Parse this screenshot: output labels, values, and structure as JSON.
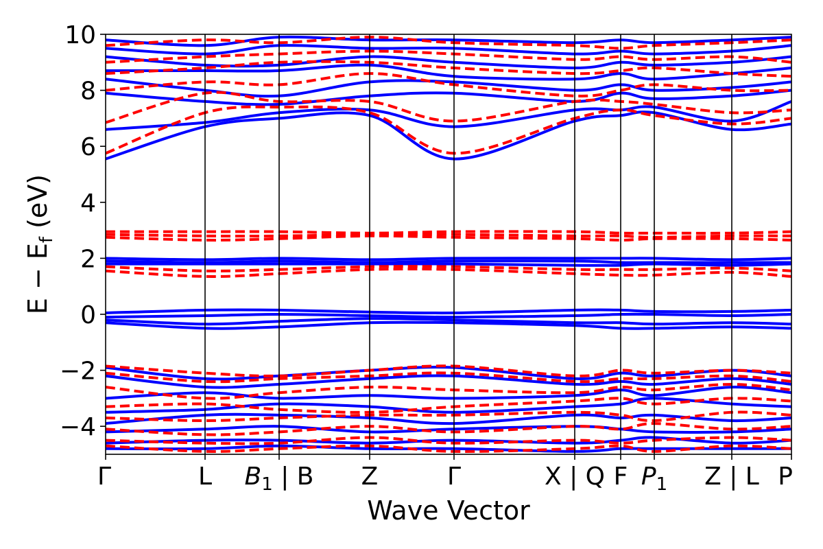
{
  "chart_data": {
    "type": "line",
    "title": "",
    "xlabel": "Wave Vector",
    "ylabel": {
      "main": "E − E",
      "sub": "f",
      "unit": " (eV)"
    },
    "ylim": [
      -5,
      10
    ],
    "yticks": [
      -4,
      -2,
      0,
      2,
      4,
      6,
      8,
      10
    ],
    "ytick_labels": [
      "−4",
      "−2",
      "0",
      "2",
      "4",
      "6",
      "8",
      "10"
    ],
    "kpoints": [
      {
        "x": 0.0,
        "label": "Γ"
      },
      {
        "x": 0.145,
        "label": "L"
      },
      {
        "x": 0.253,
        "label": "B1 | B",
        "main": "B",
        "sub": "1",
        "tail": " | B"
      },
      {
        "x": 0.385,
        "label": "Z"
      },
      {
        "x": 0.508,
        "label": "Γ"
      },
      {
        "x": 0.684,
        "label": "X | Q"
      },
      {
        "x": 0.751,
        "label": "F"
      },
      {
        "x": 0.8,
        "label": "P1",
        "main": "P",
        "sub": "1"
      },
      {
        "x": 0.913,
        "label": "Z | L"
      },
      {
        "x": 1.0,
        "label": "P"
      }
    ],
    "colors": {
      "solid_series": "#0000ff",
      "dashed_series": "#ff0000"
    },
    "series": [
      {
        "style": "solid",
        "x": [
          0,
          0.145,
          0.253,
          0.385,
          0.508,
          0.684,
          0.751,
          0.8,
          0.913,
          1.0
        ],
        "y": [
          5.55,
          6.7,
          7.0,
          7.1,
          5.55,
          6.9,
          7.1,
          7.2,
          6.6,
          6.8
        ]
      },
      {
        "style": "solid",
        "x": [
          0,
          0.145,
          0.253,
          0.385,
          0.508,
          0.684,
          0.751,
          0.8,
          0.913,
          1.0
        ],
        "y": [
          6.6,
          6.85,
          7.2,
          7.3,
          6.7,
          7.3,
          7.3,
          7.4,
          6.9,
          7.6
        ]
      },
      {
        "style": "solid",
        "x": [
          0,
          0.145,
          0.253,
          0.385,
          0.508,
          0.684,
          0.751,
          0.8,
          0.913,
          1.0
        ],
        "y": [
          7.9,
          7.6,
          7.5,
          7.8,
          7.9,
          7.6,
          7.9,
          7.7,
          7.8,
          8.0
        ]
      },
      {
        "style": "solid",
        "x": [
          0,
          0.145,
          0.253,
          0.385,
          0.508,
          0.684,
          0.751,
          0.8,
          0.913,
          1.0
        ],
        "y": [
          8.4,
          8.0,
          7.8,
          8.3,
          8.3,
          8.0,
          8.2,
          8.0,
          8.1,
          8.3
        ]
      },
      {
        "style": "solid",
        "x": [
          0,
          0.145,
          0.253,
          0.385,
          0.508,
          0.684,
          0.751,
          0.8,
          0.913,
          1.0
        ],
        "y": [
          8.7,
          8.7,
          8.7,
          8.9,
          8.5,
          8.4,
          8.6,
          8.4,
          8.6,
          8.8
        ]
      },
      {
        "style": "solid",
        "x": [
          0,
          0.145,
          0.253,
          0.385,
          0.508,
          0.684,
          0.751,
          0.8,
          0.913,
          1.0
        ],
        "y": [
          9.2,
          8.9,
          8.9,
          9.2,
          9.0,
          8.8,
          9.0,
          8.9,
          9.0,
          9.2
        ]
      },
      {
        "style": "solid",
        "x": [
          0,
          0.145,
          0.253,
          0.385,
          0.508,
          0.684,
          0.751,
          0.8,
          0.913,
          1.0
        ],
        "y": [
          9.5,
          9.3,
          9.6,
          9.5,
          9.5,
          9.3,
          9.4,
          9.3,
          9.4,
          9.6
        ]
      },
      {
        "style": "solid",
        "x": [
          0,
          0.145,
          0.253,
          0.385,
          0.508,
          0.684,
          0.751,
          0.8,
          0.913,
          1.0
        ],
        "y": [
          9.8,
          9.6,
          9.9,
          9.8,
          9.8,
          9.7,
          9.8,
          9.7,
          9.8,
          9.9
        ]
      },
      {
        "style": "solid",
        "x": [
          0,
          0.145,
          0.253,
          0.385,
          0.508,
          0.684,
          0.751,
          0.8,
          0.913,
          1.0
        ],
        "y": [
          2.0,
          1.95,
          2.0,
          1.95,
          2.0,
          2.0,
          2.0,
          2.0,
          1.95,
          2.0
        ]
      },
      {
        "style": "solid",
        "x": [
          0,
          0.145,
          0.253,
          0.385,
          0.508,
          0.684,
          0.751,
          0.8,
          0.913,
          1.0
        ],
        "y": [
          1.9,
          1.85,
          1.9,
          1.85,
          1.9,
          1.9,
          1.85,
          1.85,
          1.85,
          1.85
        ]
      },
      {
        "style": "solid",
        "x": [
          0,
          0.145,
          0.253,
          0.385,
          0.508,
          0.684,
          0.751,
          0.8,
          0.913,
          1.0
        ],
        "y": [
          1.8,
          1.8,
          1.8,
          1.8,
          1.8,
          1.75,
          1.75,
          1.8,
          1.75,
          1.8
        ]
      },
      {
        "style": "solid",
        "x": [
          0,
          0.145,
          0.253,
          0.385,
          0.508,
          0.684,
          0.751,
          0.8,
          0.913,
          1.0
        ],
        "y": [
          0.05,
          0.15,
          0.15,
          0.08,
          0.05,
          0.15,
          0.15,
          0.1,
          0.1,
          0.15
        ]
      },
      {
        "style": "solid",
        "x": [
          0,
          0.145,
          0.253,
          0.385,
          0.508,
          0.684,
          0.751,
          0.8,
          0.913,
          1.0
        ],
        "y": [
          -0.1,
          -0.05,
          0.0,
          -0.05,
          -0.1,
          -0.05,
          0.0,
          0.0,
          -0.05,
          0.0
        ]
      },
      {
        "style": "solid",
        "x": [
          0,
          0.145,
          0.253,
          0.385,
          0.508,
          0.684,
          0.751,
          0.8,
          0.913,
          1.0
        ],
        "y": [
          -0.2,
          -0.35,
          -0.25,
          -0.15,
          -0.2,
          -0.3,
          -0.3,
          -0.35,
          -0.3,
          -0.35
        ]
      },
      {
        "style": "solid",
        "x": [
          0,
          0.145,
          0.253,
          0.385,
          0.508,
          0.684,
          0.751,
          0.8,
          0.913,
          1.0
        ],
        "y": [
          -0.3,
          -0.5,
          -0.45,
          -0.3,
          -0.3,
          -0.4,
          -0.5,
          -0.5,
          -0.45,
          -0.5
        ]
      },
      {
        "style": "solid",
        "x": [
          0,
          0.145,
          0.253,
          0.385,
          0.508,
          0.684,
          0.751,
          0.8,
          0.913,
          1.0
        ],
        "y": [
          -1.9,
          -2.3,
          -2.2,
          -2.0,
          -1.9,
          -2.3,
          -2.1,
          -2.2,
          -2.0,
          -2.2
        ]
      },
      {
        "style": "solid",
        "x": [
          0,
          0.145,
          0.253,
          0.385,
          0.508,
          0.684,
          0.751,
          0.8,
          0.913,
          1.0
        ],
        "y": [
          -2.2,
          -2.6,
          -2.5,
          -2.3,
          -2.2,
          -2.5,
          -2.4,
          -2.5,
          -2.3,
          -2.5
        ]
      },
      {
        "style": "solid",
        "x": [
          0,
          0.145,
          0.253,
          0.385,
          0.508,
          0.684,
          0.751,
          0.8,
          0.913,
          1.0
        ],
        "y": [
          -3.0,
          -2.8,
          -3.0,
          -2.9,
          -3.0,
          -2.9,
          -2.7,
          -2.9,
          -2.6,
          -2.8
        ]
      },
      {
        "style": "solid",
        "x": [
          0,
          0.145,
          0.253,
          0.385,
          0.508,
          0.684,
          0.751,
          0.8,
          0.913,
          1.0
        ],
        "y": [
          -3.5,
          -3.4,
          -3.2,
          -3.3,
          -3.5,
          -3.3,
          -3.2,
          -3.0,
          -3.2,
          -3.3
        ]
      },
      {
        "style": "solid",
        "x": [
          0,
          0.145,
          0.253,
          0.385,
          0.508,
          0.684,
          0.751,
          0.8,
          0.913,
          1.0
        ],
        "y": [
          -3.9,
          -3.6,
          -3.6,
          -3.7,
          -3.9,
          -3.6,
          -3.7,
          -3.6,
          -3.8,
          -3.7
        ]
      },
      {
        "style": "solid",
        "x": [
          0,
          0.145,
          0.253,
          0.385,
          0.508,
          0.684,
          0.751,
          0.8,
          0.913,
          1.0
        ],
        "y": [
          -4.2,
          -4.1,
          -4.0,
          -4.2,
          -4.1,
          -4.0,
          -4.1,
          -4.2,
          -4.2,
          -4.1
        ]
      },
      {
        "style": "solid",
        "x": [
          0,
          0.145,
          0.253,
          0.385,
          0.508,
          0.684,
          0.751,
          0.8,
          0.913,
          1.0
        ],
        "y": [
          -4.6,
          -4.5,
          -4.5,
          -4.6,
          -4.5,
          -4.6,
          -4.5,
          -4.4,
          -4.6,
          -4.5
        ]
      },
      {
        "style": "solid",
        "x": [
          0,
          0.145,
          0.253,
          0.385,
          0.508,
          0.684,
          0.751,
          0.8,
          0.913,
          1.0
        ],
        "y": [
          -4.8,
          -4.8,
          -4.7,
          -4.8,
          -4.8,
          -4.9,
          -4.8,
          -4.8,
          -4.8,
          -4.8
        ]
      },
      {
        "style": "dashed",
        "x": [
          0,
          0.145,
          0.253,
          0.385,
          0.508,
          0.684,
          0.751,
          0.8,
          0.913,
          1.0
        ],
        "y": [
          5.75,
          7.2,
          7.4,
          7.2,
          5.75,
          7.0,
          7.3,
          7.1,
          6.8,
          7.0
        ]
      },
      {
        "style": "dashed",
        "x": [
          0,
          0.145,
          0.253,
          0.385,
          0.508,
          0.684,
          0.751,
          0.8,
          0.913,
          1.0
        ],
        "y": [
          6.85,
          7.9,
          7.6,
          7.6,
          6.9,
          7.6,
          7.6,
          7.5,
          7.2,
          7.3
        ]
      },
      {
        "style": "dashed",
        "x": [
          0,
          0.145,
          0.253,
          0.385,
          0.508,
          0.684,
          0.751,
          0.8,
          0.913,
          1.0
        ],
        "y": [
          8.0,
          8.3,
          8.2,
          8.6,
          8.2,
          7.8,
          8.0,
          8.2,
          8.0,
          8.0
        ]
      },
      {
        "style": "dashed",
        "x": [
          0,
          0.145,
          0.253,
          0.385,
          0.508,
          0.684,
          0.751,
          0.8,
          0.913,
          1.0
        ],
        "y": [
          8.6,
          8.8,
          9.0,
          9.0,
          8.8,
          8.6,
          8.7,
          8.8,
          8.6,
          8.5
        ]
      },
      {
        "style": "dashed",
        "x": [
          0,
          0.145,
          0.253,
          0.385,
          0.508,
          0.684,
          0.751,
          0.8,
          0.913,
          1.0
        ],
        "y": [
          9.0,
          9.2,
          9.3,
          9.4,
          9.3,
          9.1,
          9.2,
          9.1,
          9.2,
          9.0
        ]
      },
      {
        "style": "dashed",
        "x": [
          0,
          0.145,
          0.253,
          0.385,
          0.508,
          0.684,
          0.751,
          0.8,
          0.913,
          1.0
        ],
        "y": [
          9.6,
          9.8,
          9.7,
          9.9,
          9.7,
          9.6,
          9.5,
          9.6,
          9.7,
          9.8
        ]
      },
      {
        "style": "dashed",
        "x": [
          0,
          0.145,
          0.253,
          0.385,
          0.508,
          0.684,
          0.751,
          0.8,
          0.913,
          1.0
        ],
        "y": [
          2.95,
          2.95,
          2.95,
          2.9,
          2.95,
          2.95,
          2.9,
          2.9,
          2.9,
          2.95
        ]
      },
      {
        "style": "dashed",
        "x": [
          0,
          0.145,
          0.253,
          0.385,
          0.508,
          0.684,
          0.751,
          0.8,
          0.913,
          1.0
        ],
        "y": [
          2.85,
          2.8,
          2.8,
          2.85,
          2.85,
          2.8,
          2.8,
          2.75,
          2.8,
          2.8
        ]
      },
      {
        "style": "dashed",
        "x": [
          0,
          0.145,
          0.253,
          0.385,
          0.508,
          0.684,
          0.751,
          0.8,
          0.913,
          1.0
        ],
        "y": [
          2.75,
          2.65,
          2.7,
          2.8,
          2.75,
          2.7,
          2.65,
          2.7,
          2.7,
          2.65
        ]
      },
      {
        "style": "dashed",
        "x": [
          0,
          0.145,
          0.253,
          0.385,
          0.508,
          0.684,
          0.751,
          0.8,
          0.913,
          1.0
        ],
        "y": [
          1.7,
          1.55,
          1.6,
          1.7,
          1.7,
          1.6,
          1.6,
          1.6,
          1.65,
          1.55
        ]
      },
      {
        "style": "dashed",
        "x": [
          0,
          0.145,
          0.253,
          0.385,
          0.508,
          0.684,
          0.751,
          0.8,
          0.913,
          1.0
        ],
        "y": [
          1.55,
          1.35,
          1.45,
          1.6,
          1.6,
          1.45,
          1.4,
          1.4,
          1.5,
          1.35
        ]
      },
      {
        "style": "dashed",
        "x": [
          0,
          0.145,
          0.253,
          0.385,
          0.508,
          0.684,
          0.751,
          0.8,
          0.913,
          1.0
        ],
        "y": [
          -1.85,
          -2.1,
          -2.2,
          -2.0,
          -1.85,
          -2.2,
          -2.0,
          -2.1,
          -2.0,
          -2.1
        ]
      },
      {
        "style": "dashed",
        "x": [
          0,
          0.145,
          0.253,
          0.385,
          0.508,
          0.684,
          0.751,
          0.8,
          0.913,
          1.0
        ],
        "y": [
          -2.1,
          -2.4,
          -2.3,
          -2.2,
          -2.1,
          -2.4,
          -2.3,
          -2.3,
          -2.2,
          -2.4
        ]
      },
      {
        "style": "dashed",
        "x": [
          0,
          0.145,
          0.253,
          0.385,
          0.508,
          0.684,
          0.751,
          0.8,
          0.913,
          1.0
        ],
        "y": [
          -2.6,
          -3.0,
          -2.8,
          -2.6,
          -2.7,
          -2.8,
          -2.6,
          -2.7,
          -2.5,
          -2.7
        ]
      },
      {
        "style": "dashed",
        "x": [
          0,
          0.145,
          0.253,
          0.385,
          0.508,
          0.684,
          0.751,
          0.8,
          0.913,
          1.0
        ],
        "y": [
          -3.3,
          -3.2,
          -3.4,
          -3.5,
          -3.3,
          -3.1,
          -3.0,
          -3.2,
          -3.0,
          -3.1
        ]
      },
      {
        "style": "dashed",
        "x": [
          0,
          0.145,
          0.253,
          0.385,
          0.508,
          0.684,
          0.751,
          0.8,
          0.913,
          1.0
        ],
        "y": [
          -3.7,
          -3.8,
          -3.7,
          -3.6,
          -3.6,
          -3.5,
          -3.6,
          -3.8,
          -3.5,
          -3.6
        ]
      },
      {
        "style": "dashed",
        "x": [
          0,
          0.145,
          0.253,
          0.385,
          0.508,
          0.684,
          0.751,
          0.8,
          0.913,
          1.0
        ],
        "y": [
          -4.1,
          -4.3,
          -4.2,
          -4.0,
          -4.2,
          -4.0,
          -4.1,
          -3.9,
          -4.1,
          -4.0
        ]
      },
      {
        "style": "dashed",
        "x": [
          0,
          0.145,
          0.253,
          0.385,
          0.508,
          0.684,
          0.751,
          0.8,
          0.913,
          1.0
        ],
        "y": [
          -4.5,
          -4.6,
          -4.6,
          -4.4,
          -4.6,
          -4.5,
          -4.6,
          -4.5,
          -4.4,
          -4.5
        ]
      },
      {
        "style": "dashed",
        "x": [
          0,
          0.145,
          0.253,
          0.385,
          0.508,
          0.684,
          0.751,
          0.8,
          0.913,
          1.0
        ],
        "y": [
          -4.7,
          -4.9,
          -4.8,
          -4.7,
          -4.9,
          -4.8,
          -4.7,
          -4.9,
          -4.7,
          -4.8
        ]
      }
    ]
  }
}
